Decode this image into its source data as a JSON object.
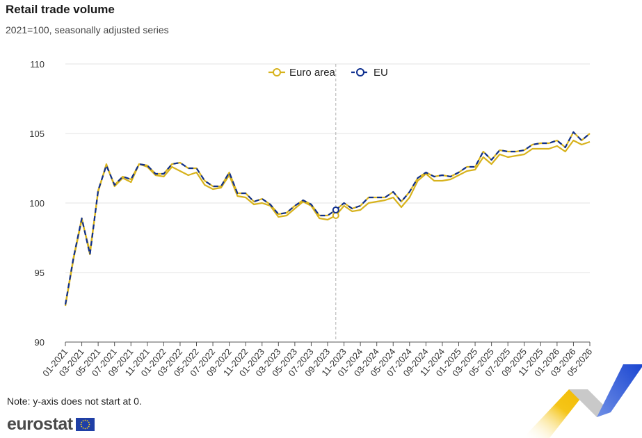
{
  "header": {
    "title": "Retail trade volume",
    "subtitle": "2021=100, seasonally adjusted series"
  },
  "footer": {
    "note": "Note: y-axis does not start at 0.",
    "logo_text": "eurostat"
  },
  "colors": {
    "euro_area": "#d7b21c",
    "eu": "#0e2f8f",
    "grid": "#e3e3e3",
    "crosshair": "#b0b0b0"
  },
  "chart_data": {
    "type": "line",
    "title": "Retail trade volume",
    "subtitle": "2021=100, seasonally adjusted series",
    "ylim": [
      90,
      110
    ],
    "yticks": [
      90,
      95,
      100,
      105,
      110
    ],
    "legend_position": "top-center",
    "grid": true,
    "x_tick_labels": [
      "01-2021",
      "03-2021",
      "05-2021",
      "07-2021",
      "09-2021",
      "11-2021",
      "01-2022",
      "03-2022",
      "05-2022",
      "07-2022",
      "09-2022",
      "11-2022",
      "01-2023",
      "03-2023",
      "05-2023",
      "07-2023",
      "09-2023",
      "11-2023",
      "01-2024",
      "03-2024",
      "05-2024",
      "07-2024",
      "09-2024",
      "11-2024",
      "01-2025",
      "03-2025",
      "05-2025",
      "07-2025",
      "09-2025",
      "11-2025",
      "01-2026",
      "03-2026",
      "05-2026"
    ],
    "x": [
      "01-2021",
      "02-2021",
      "03-2021",
      "04-2021",
      "05-2021",
      "06-2021",
      "07-2021",
      "08-2021",
      "09-2021",
      "10-2021",
      "11-2021",
      "12-2021",
      "01-2022",
      "02-2022",
      "03-2022",
      "04-2022",
      "05-2022",
      "06-2022",
      "07-2022",
      "08-2022",
      "09-2022",
      "10-2022",
      "11-2022",
      "12-2022",
      "01-2023",
      "02-2023",
      "03-2023",
      "04-2023",
      "05-2023",
      "06-2023",
      "07-2023",
      "08-2023",
      "09-2023",
      "10-2023",
      "11-2023",
      "12-2023",
      "01-2024",
      "02-2024",
      "03-2024",
      "04-2024",
      "05-2024",
      "06-2024",
      "07-2024",
      "08-2024",
      "09-2024",
      "10-2024",
      "11-2024",
      "12-2024",
      "01-2025",
      "02-2025",
      "03-2025",
      "04-2025",
      "05-2025",
      "06-2025",
      "07-2025",
      "08-2025",
      "09-2025",
      "10-2025",
      "11-2025",
      "12-2025",
      "01-2026",
      "02-2026",
      "03-2026",
      "04-2026",
      "05-2026"
    ],
    "highlight_x": "10-2023",
    "series": [
      {
        "name": "Euro area",
        "values": [
          92.6,
          96.0,
          98.8,
          96.5,
          100.8,
          102.8,
          101.2,
          101.8,
          101.5,
          102.8,
          102.6,
          102.0,
          101.9,
          102.6,
          102.3,
          102.0,
          102.2,
          101.3,
          101.0,
          101.1,
          102.0,
          100.5,
          100.4,
          99.9,
          100.0,
          99.8,
          99.0,
          99.1,
          99.6,
          100.1,
          99.8,
          98.9,
          98.8,
          99.1,
          99.8,
          99.4,
          99.5,
          100.0,
          100.1,
          100.2,
          100.4,
          99.7,
          100.4,
          101.6,
          102.1,
          101.6,
          101.6,
          101.7,
          102.0,
          102.3,
          102.4,
          103.3,
          102.8,
          103.5,
          103.3,
          103.4,
          103.5,
          103.9,
          103.9,
          103.9,
          104.1,
          103.7,
          104.5,
          104.2,
          104.4
        ]
      },
      {
        "name": "EU",
        "values": [
          92.7,
          96.1,
          98.9,
          96.3,
          100.9,
          102.7,
          101.3,
          101.9,
          101.7,
          102.8,
          102.7,
          102.1,
          102.1,
          102.8,
          102.9,
          102.5,
          102.5,
          101.6,
          101.2,
          101.2,
          102.2,
          100.7,
          100.7,
          100.1,
          100.3,
          99.9,
          99.2,
          99.3,
          99.8,
          100.2,
          99.9,
          99.1,
          99.1,
          99.5,
          100.0,
          99.6,
          99.8,
          100.4,
          100.4,
          100.4,
          100.8,
          100.1,
          100.8,
          101.8,
          102.2,
          101.9,
          102.0,
          101.9,
          102.2,
          102.6,
          102.6,
          103.7,
          103.1,
          103.8,
          103.7,
          103.7,
          103.8,
          104.2,
          104.3,
          104.3,
          104.5,
          104.0,
          105.1,
          104.5,
          105.0
        ]
      }
    ]
  }
}
